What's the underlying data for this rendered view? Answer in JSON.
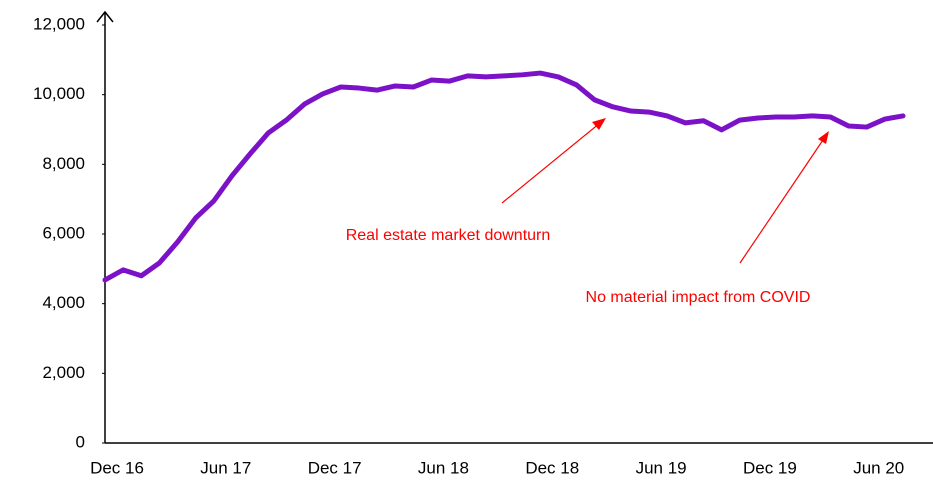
{
  "chart_data": {
    "type": "line",
    "categories": [
      "Dec 16",
      null,
      null,
      null,
      null,
      null,
      "Jun 17",
      null,
      null,
      null,
      null,
      null,
      "Dec 17",
      null,
      null,
      null,
      null,
      null,
      "Jun 18",
      null,
      null,
      null,
      null,
      null,
      "Dec 18",
      null,
      null,
      null,
      null,
      null,
      "Jun 19",
      null,
      null,
      null,
      null,
      null,
      "Dec 19",
      null,
      null,
      null,
      null,
      null,
      "Jun 20",
      null,
      null
    ],
    "series": [
      {
        "color": "#7b12c8",
        "values": [
          4680,
          4970,
          4800,
          5170,
          5770,
          6460,
          6950,
          7670,
          8300,
          8900,
          9270,
          9730,
          10020,
          10220,
          10190,
          10130,
          10250,
          10220,
          10420,
          10390,
          10540,
          10510,
          10540,
          10570,
          10620,
          10510,
          10280,
          9850,
          9650,
          9530,
          9500,
          9390,
          9190,
          9250,
          8990,
          9270,
          9330,
          9360,
          9360,
          9390,
          9360,
          9100,
          9070,
          9300,
          9390
        ]
      }
    ],
    "ylim": [
      0,
      12000
    ],
    "yticks": [
      0,
      {
        "value": 2000,
        "label": "2,000"
      },
      {
        "value": 4000,
        "label": "4,000"
      },
      {
        "value": 6000,
        "label": "6,000"
      },
      {
        "value": 8000,
        "label": "8,000"
      },
      {
        "value": 10000,
        "label": "10,000"
      },
      {
        "value": 12000,
        "label": "12,000"
      }
    ],
    "annotations": [
      "Real estate market downturn",
      "No material impact from COVID"
    ]
  }
}
